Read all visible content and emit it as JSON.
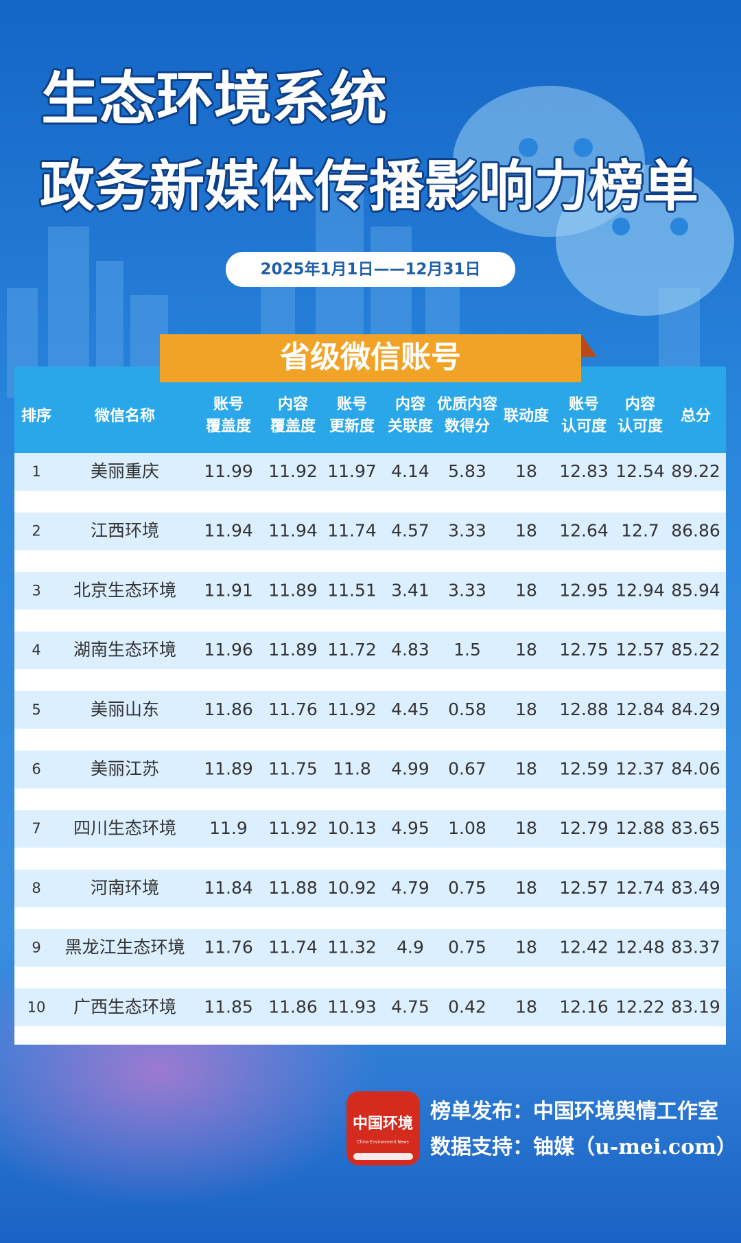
{
  "header": {
    "title": [
      "生态环境系统",
      "政务新媒体传播影响力榜单"
    ],
    "date": "2025年1月1日——12月31日",
    "section": "省级微信账号"
  },
  "table": {
    "headers": [
      [
        "排序"
      ],
      [
        "微信名称"
      ],
      [
        "账号",
        "覆盖度"
      ],
      [
        "内容",
        "覆盖度"
      ],
      [
        "账号",
        "更新度"
      ],
      [
        "内容",
        "关联度"
      ],
      [
        "优质内容",
        "数得分"
      ],
      [
        "联动度"
      ],
      [
        "账号",
        "认可度"
      ],
      [
        "内容",
        "认可度"
      ],
      [
        "总分"
      ]
    ],
    "rows": [
      [
        1,
        "美丽重庆",
        11.99,
        11.92,
        11.97,
        4.14,
        5.83,
        18,
        12.83,
        12.54,
        89.22
      ],
      [
        2,
        "江西环境",
        11.94,
        11.94,
        11.74,
        4.57,
        3.33,
        18,
        12.64,
        12.7,
        86.86
      ],
      [
        3,
        "北京生态环境",
        11.91,
        11.89,
        11.51,
        3.41,
        3.33,
        18,
        12.95,
        12.94,
        85.94
      ],
      [
        4,
        "湖南生态环境",
        11.96,
        11.89,
        11.72,
        4.83,
        1.5,
        18,
        12.75,
        12.57,
        85.22
      ],
      [
        5,
        "美丽山东",
        11.86,
        11.76,
        11.92,
        4.45,
        0.58,
        18,
        12.88,
        12.84,
        84.29
      ],
      [
        6,
        "美丽江苏",
        11.89,
        11.75,
        11.8,
        4.99,
        0.67,
        18,
        12.59,
        12.37,
        84.06
      ],
      [
        7,
        "四川生态环境",
        11.9,
        11.92,
        10.13,
        4.95,
        1.08,
        18,
        12.79,
        12.88,
        83.65
      ],
      [
        8,
        "河南环境",
        11.84,
        11.88,
        10.92,
        4.79,
        0.75,
        18,
        12.57,
        12.74,
        83.49
      ],
      [
        9,
        "黑龙江生态环境",
        11.76,
        11.74,
        11.32,
        4.9,
        0.75,
        18,
        12.42,
        12.48,
        83.37
      ],
      [
        10,
        "广西生态环境",
        11.85,
        11.86,
        11.93,
        4.75,
        0.42,
        18,
        12.16,
        12.22,
        83.19
      ]
    ]
  },
  "footer": {
    "logo": {
      "name": "中国环境",
      "subtitle": "China Environment News"
    },
    "lines": [
      "榜单发布：中国环境舆情工作室",
      "数据支持：铀媒（u-mei.com）"
    ]
  }
}
